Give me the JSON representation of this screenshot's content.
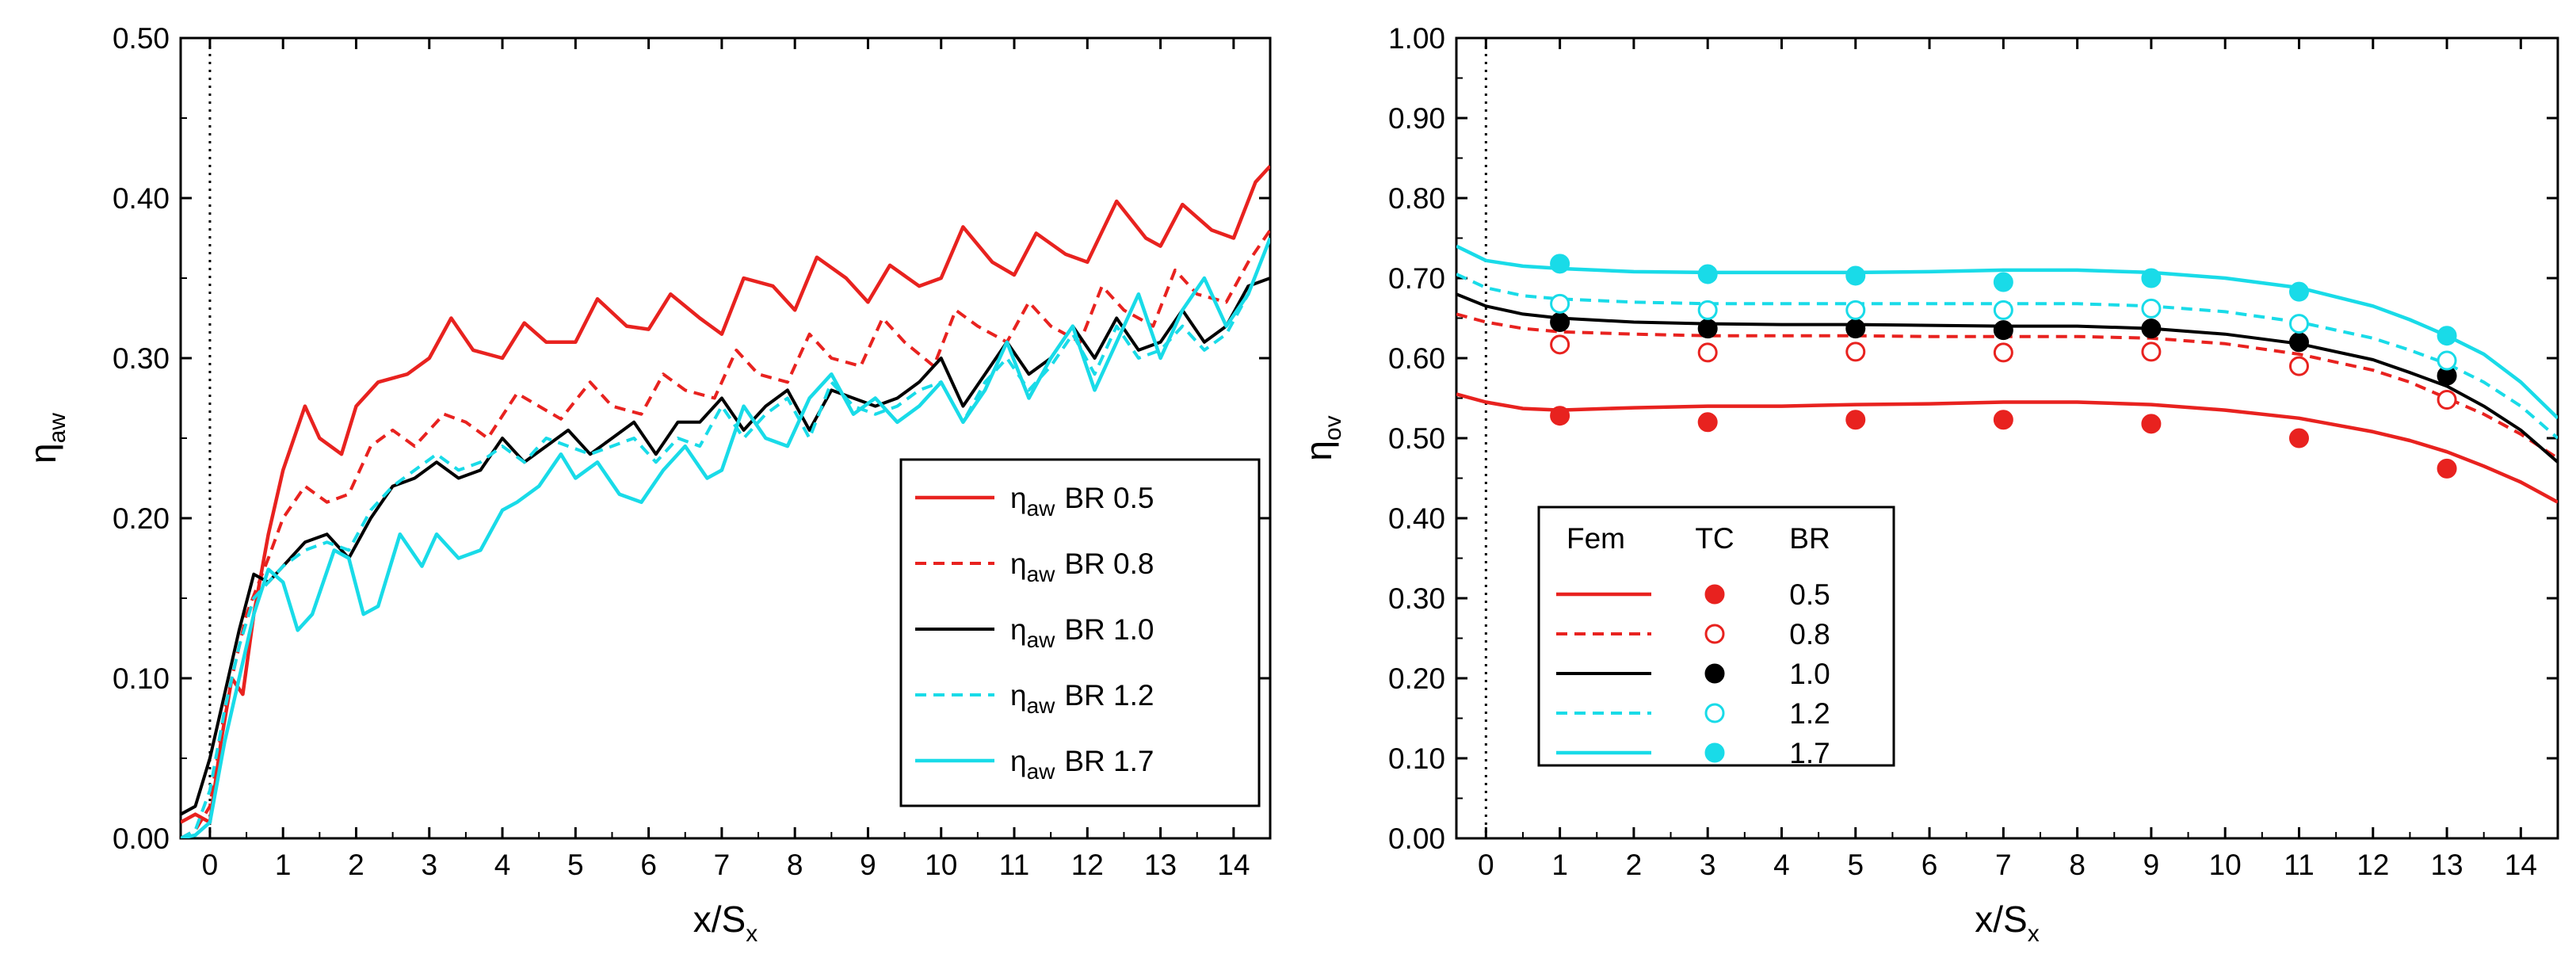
{
  "chart_data": [
    {
      "type": "line",
      "xlabel": {
        "main": "x/S",
        "sub": "x"
      },
      "ylabel": {
        "main": "η",
        "sub": "aw"
      },
      "xlim": [
        -0.4,
        14.5
      ],
      "ylim": [
        0.0,
        0.5
      ],
      "xticks": [
        "0",
        "1",
        "2",
        "3",
        "4",
        "5",
        "6",
        "7",
        "8",
        "9",
        "10",
        "11",
        "12",
        "13",
        "14"
      ],
      "yticks": [
        "0.00",
        "0.10",
        "0.20",
        "0.30",
        "0.40",
        "0.50"
      ],
      "legend_position": "lower-right",
      "series": [
        {
          "name": "η",
          "sub": "aw",
          "label": "BR 0.5",
          "color": "#e8221f",
          "dash": "solid",
          "width": 4.5,
          "x": [
            -0.4,
            -0.2,
            0.0,
            0.15,
            0.3,
            0.45,
            0.6,
            0.8,
            1.0,
            1.3,
            1.5,
            1.8,
            2.0,
            2.3,
            2.7,
            3.0,
            3.3,
            3.6,
            4.0,
            4.3,
            4.6,
            5.0,
            5.3,
            5.7,
            6.0,
            6.3,
            6.7,
            7.0,
            7.3,
            7.7,
            8.0,
            8.3,
            8.7,
            9.0,
            9.3,
            9.7,
            10.0,
            10.3,
            10.7,
            11.0,
            11.3,
            11.7,
            12.0,
            12.4,
            12.8,
            13.0,
            13.3,
            13.7,
            14.0,
            14.3,
            14.5
          ],
          "y": [
            0.01,
            0.015,
            0.01,
            0.06,
            0.1,
            0.09,
            0.14,
            0.19,
            0.23,
            0.27,
            0.25,
            0.24,
            0.27,
            0.285,
            0.29,
            0.3,
            0.325,
            0.305,
            0.3,
            0.322,
            0.31,
            0.31,
            0.337,
            0.32,
            0.318,
            0.34,
            0.325,
            0.315,
            0.35,
            0.345,
            0.33,
            0.363,
            0.35,
            0.335,
            0.358,
            0.345,
            0.35,
            0.382,
            0.36,
            0.352,
            0.378,
            0.365,
            0.36,
            0.398,
            0.375,
            0.37,
            0.396,
            0.38,
            0.375,
            0.41,
            0.42
          ]
        },
        {
          "name": "η",
          "sub": "aw",
          "label": "BR 0.8",
          "color": "#e8221f",
          "dash": "dash",
          "width": 4,
          "x": [
            -0.4,
            -0.2,
            0.0,
            0.2,
            0.5,
            0.8,
            1.0,
            1.3,
            1.6,
            1.9,
            2.2,
            2.5,
            2.8,
            3.2,
            3.5,
            3.8,
            4.2,
            4.5,
            4.8,
            5.2,
            5.5,
            5.9,
            6.2,
            6.5,
            6.9,
            7.2,
            7.5,
            7.9,
            8.2,
            8.5,
            8.9,
            9.2,
            9.5,
            9.9,
            10.2,
            10.5,
            10.9,
            11.2,
            11.5,
            11.9,
            12.2,
            12.5,
            12.9,
            13.2,
            13.5,
            13.9,
            14.2,
            14.5
          ],
          "y": [
            0.0,
            0.005,
            0.02,
            0.08,
            0.14,
            0.175,
            0.2,
            0.22,
            0.21,
            0.215,
            0.245,
            0.255,
            0.245,
            0.265,
            0.26,
            0.25,
            0.278,
            0.27,
            0.262,
            0.285,
            0.27,
            0.265,
            0.29,
            0.28,
            0.275,
            0.305,
            0.29,
            0.285,
            0.315,
            0.3,
            0.295,
            0.325,
            0.31,
            0.295,
            0.33,
            0.32,
            0.31,
            0.335,
            0.32,
            0.31,
            0.345,
            0.33,
            0.32,
            0.355,
            0.34,
            0.335,
            0.36,
            0.38
          ]
        },
        {
          "name": "η",
          "sub": "aw",
          "label": "BR 1.0",
          "color": "#000000",
          "dash": "solid",
          "width": 4,
          "x": [
            -0.4,
            -0.2,
            0.0,
            0.2,
            0.4,
            0.6,
            0.8,
            1.0,
            1.3,
            1.6,
            1.9,
            2.2,
            2.5,
            2.8,
            3.1,
            3.4,
            3.7,
            4.0,
            4.3,
            4.6,
            4.9,
            5.2,
            5.5,
            5.8,
            6.1,
            6.4,
            6.7,
            7.0,
            7.3,
            7.6,
            7.9,
            8.2,
            8.5,
            8.8,
            9.1,
            9.4,
            9.7,
            10.0,
            10.3,
            10.6,
            10.9,
            11.2,
            11.5,
            11.8,
            12.1,
            12.4,
            12.7,
            13.0,
            13.3,
            13.6,
            13.9,
            14.2,
            14.5
          ],
          "y": [
            0.015,
            0.02,
            0.05,
            0.09,
            0.13,
            0.165,
            0.16,
            0.17,
            0.185,
            0.19,
            0.175,
            0.2,
            0.22,
            0.225,
            0.235,
            0.225,
            0.23,
            0.25,
            0.235,
            0.245,
            0.255,
            0.24,
            0.25,
            0.26,
            0.24,
            0.26,
            0.26,
            0.275,
            0.255,
            0.27,
            0.28,
            0.255,
            0.28,
            0.275,
            0.27,
            0.275,
            0.285,
            0.3,
            0.27,
            0.29,
            0.31,
            0.29,
            0.3,
            0.32,
            0.3,
            0.325,
            0.305,
            0.31,
            0.33,
            0.31,
            0.32,
            0.345,
            0.35
          ]
        },
        {
          "name": "η",
          "sub": "aw",
          "label": "BR 1.2",
          "color": "#19dbe8",
          "dash": "dash",
          "width": 4,
          "x": [
            -0.4,
            -0.2,
            0.0,
            0.2,
            0.4,
            0.6,
            0.8,
            1.0,
            1.3,
            1.6,
            1.9,
            2.2,
            2.5,
            2.8,
            3.1,
            3.4,
            3.7,
            4.0,
            4.3,
            4.6,
            4.9,
            5.2,
            5.5,
            5.8,
            6.1,
            6.4,
            6.7,
            7.0,
            7.3,
            7.6,
            7.9,
            8.2,
            8.5,
            8.8,
            9.1,
            9.4,
            9.7,
            10.0,
            10.3,
            10.6,
            10.9,
            11.2,
            11.5,
            11.8,
            12.1,
            12.4,
            12.7,
            13.0,
            13.3,
            13.6,
            13.9,
            14.2,
            14.5
          ],
          "y": [
            0.0,
            0.005,
            0.03,
            0.08,
            0.12,
            0.15,
            0.16,
            0.17,
            0.18,
            0.185,
            0.18,
            0.205,
            0.22,
            0.23,
            0.24,
            0.23,
            0.235,
            0.245,
            0.235,
            0.25,
            0.245,
            0.24,
            0.245,
            0.25,
            0.235,
            0.25,
            0.245,
            0.27,
            0.25,
            0.265,
            0.275,
            0.25,
            0.285,
            0.27,
            0.265,
            0.27,
            0.28,
            0.285,
            0.26,
            0.285,
            0.3,
            0.28,
            0.295,
            0.315,
            0.29,
            0.32,
            0.3,
            0.305,
            0.32,
            0.305,
            0.315,
            0.34,
            0.375
          ]
        },
        {
          "name": "η",
          "sub": "aw",
          "label": "BR 1.7",
          "color": "#19dbe8",
          "dash": "solid",
          "width": 4.5,
          "x": [
            -0.4,
            -0.2,
            0.0,
            0.2,
            0.4,
            0.6,
            0.8,
            1.0,
            1.2,
            1.4,
            1.7,
            1.9,
            2.1,
            2.3,
            2.6,
            2.9,
            3.1,
            3.4,
            3.7,
            4.0,
            4.2,
            4.5,
            4.8,
            5.0,
            5.3,
            5.6,
            5.9,
            6.2,
            6.5,
            6.8,
            7.0,
            7.3,
            7.6,
            7.9,
            8.2,
            8.5,
            8.8,
            9.1,
            9.4,
            9.7,
            10.0,
            10.3,
            10.6,
            10.9,
            11.2,
            11.5,
            11.8,
            12.1,
            12.4,
            12.7,
            13.0,
            13.3,
            13.6,
            13.9,
            14.2,
            14.5
          ],
          "y": [
            0.0,
            0.002,
            0.01,
            0.06,
            0.1,
            0.14,
            0.168,
            0.16,
            0.13,
            0.14,
            0.18,
            0.175,
            0.14,
            0.145,
            0.19,
            0.17,
            0.19,
            0.175,
            0.18,
            0.205,
            0.21,
            0.22,
            0.24,
            0.225,
            0.235,
            0.215,
            0.21,
            0.23,
            0.245,
            0.225,
            0.23,
            0.27,
            0.25,
            0.245,
            0.275,
            0.29,
            0.265,
            0.275,
            0.26,
            0.27,
            0.285,
            0.26,
            0.28,
            0.31,
            0.275,
            0.3,
            0.32,
            0.28,
            0.31,
            0.34,
            0.3,
            0.33,
            0.35,
            0.32,
            0.34,
            0.375
          ]
        }
      ],
      "vline_x": 0
    },
    {
      "type": "line",
      "xlabel": {
        "main": "x/S",
        "sub": "x"
      },
      "ylabel": {
        "main": "η",
        "sub": "ov"
      },
      "xlim": [
        -0.4,
        14.5
      ],
      "ylim": [
        0.0,
        1.0
      ],
      "xticks": [
        "0",
        "1",
        "2",
        "3",
        "4",
        "5",
        "6",
        "7",
        "8",
        "9",
        "10",
        "11",
        "12",
        "13",
        "14"
      ],
      "yticks": [
        "0.00",
        "0.10",
        "0.20",
        "0.30",
        "0.40",
        "0.50",
        "0.60",
        "0.70",
        "0.80",
        "0.90",
        "1.00"
      ],
      "legend_position": "lower-left",
      "legend_headers": [
        "Fem",
        "TC",
        "BR"
      ],
      "series": [
        {
          "label": "0.5",
          "color": "#e8221f",
          "dash": "solid",
          "width": 4.5,
          "marker_filled": true,
          "x": [
            -0.4,
            0.0,
            0.5,
            1.0,
            2.0,
            3.0,
            4.0,
            5.0,
            6.0,
            7.0,
            8.0,
            9.0,
            10.0,
            11.0,
            12.0,
            12.5,
            13.0,
            13.5,
            14.0,
            14.5
          ],
          "y": [
            0.555,
            0.545,
            0.537,
            0.535,
            0.538,
            0.54,
            0.54,
            0.542,
            0.543,
            0.545,
            0.545,
            0.542,
            0.535,
            0.525,
            0.508,
            0.497,
            0.483,
            0.465,
            0.445,
            0.42
          ],
          "tc_x": [
            1,
            3,
            5,
            7,
            9,
            11,
            13
          ],
          "tc_y": [
            0.528,
            0.52,
            0.523,
            0.523,
            0.518,
            0.5,
            0.462
          ]
        },
        {
          "label": "0.8",
          "color": "#e8221f",
          "dash": "dash",
          "width": 4,
          "marker_filled": false,
          "x": [
            -0.4,
            0.0,
            0.5,
            1.0,
            2.0,
            3.0,
            4.0,
            5.0,
            6.0,
            7.0,
            8.0,
            9.0,
            10.0,
            11.0,
            12.0,
            12.5,
            13.0,
            13.5,
            14.0,
            14.5
          ],
          "y": [
            0.655,
            0.645,
            0.637,
            0.633,
            0.63,
            0.628,
            0.628,
            0.628,
            0.627,
            0.627,
            0.627,
            0.625,
            0.618,
            0.605,
            0.585,
            0.57,
            0.55,
            0.53,
            0.505,
            0.475
          ],
          "tc_x": [
            1,
            3,
            5,
            7,
            9,
            11,
            13
          ],
          "tc_y": [
            0.617,
            0.607,
            0.608,
            0.607,
            0.608,
            0.59,
            0.548
          ]
        },
        {
          "label": "1.0",
          "color": "#000000",
          "dash": "solid",
          "width": 4,
          "marker_filled": true,
          "x": [
            -0.4,
            0.0,
            0.5,
            1.0,
            2.0,
            3.0,
            4.0,
            5.0,
            6.0,
            7.0,
            8.0,
            9.0,
            10.0,
            11.0,
            12.0,
            12.5,
            13.0,
            13.5,
            14.0,
            14.5
          ],
          "y": [
            0.68,
            0.665,
            0.655,
            0.65,
            0.645,
            0.643,
            0.642,
            0.642,
            0.641,
            0.64,
            0.64,
            0.637,
            0.63,
            0.618,
            0.598,
            0.582,
            0.565,
            0.54,
            0.51,
            0.47
          ],
          "tc_x": [
            1,
            3,
            5,
            7,
            9,
            11,
            13
          ],
          "tc_y": [
            0.645,
            0.637,
            0.637,
            0.635,
            0.637,
            0.62,
            0.578
          ]
        },
        {
          "label": "1.2",
          "color": "#19dbe8",
          "dash": "dash",
          "width": 4,
          "marker_filled": false,
          "x": [
            -0.4,
            0.0,
            0.5,
            1.0,
            2.0,
            3.0,
            4.0,
            5.0,
            6.0,
            7.0,
            8.0,
            9.0,
            10.0,
            11.0,
            12.0,
            12.5,
            13.0,
            13.5,
            14.0,
            14.5
          ],
          "y": [
            0.705,
            0.688,
            0.678,
            0.674,
            0.67,
            0.668,
            0.668,
            0.668,
            0.668,
            0.668,
            0.668,
            0.665,
            0.658,
            0.645,
            0.625,
            0.61,
            0.593,
            0.57,
            0.54,
            0.5
          ],
          "tc_x": [
            1,
            3,
            5,
            7,
            9,
            11,
            13
          ],
          "tc_y": [
            0.668,
            0.66,
            0.66,
            0.66,
            0.662,
            0.643,
            0.597
          ]
        },
        {
          "label": "1.7",
          "color": "#19dbe8",
          "dash": "solid",
          "width": 4.5,
          "marker_filled": true,
          "x": [
            -0.4,
            0.0,
            0.5,
            1.0,
            2.0,
            3.0,
            4.0,
            5.0,
            6.0,
            7.0,
            8.0,
            9.0,
            10.0,
            11.0,
            12.0,
            12.5,
            13.0,
            13.5,
            14.0,
            14.5
          ],
          "y": [
            0.74,
            0.722,
            0.715,
            0.712,
            0.708,
            0.707,
            0.707,
            0.707,
            0.708,
            0.71,
            0.71,
            0.707,
            0.7,
            0.688,
            0.665,
            0.648,
            0.628,
            0.605,
            0.57,
            0.525
          ],
          "tc_x": [
            1,
            3,
            5,
            7,
            9,
            11,
            13
          ],
          "tc_y": [
            0.718,
            0.705,
            0.703,
            0.695,
            0.7,
            0.683,
            0.628
          ]
        }
      ],
      "vline_x": 0
    }
  ]
}
